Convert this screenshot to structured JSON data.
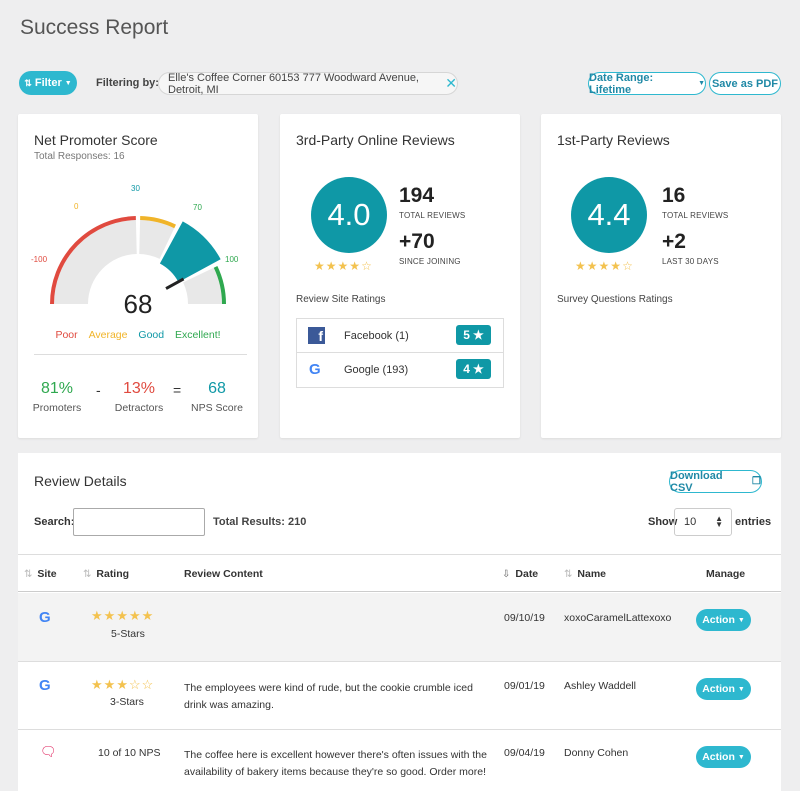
{
  "page_title": "Success Report",
  "filter": {
    "button_label": "Filter",
    "label": "Filtering by:",
    "chip": "Elle's Coffee Corner 60153 777 Woodward Avenue, Detroit, MI"
  },
  "date_range_label": "Date Range: Lifetime",
  "save_pdf_label": "Save as PDF",
  "nps": {
    "title": "Net Promoter Score",
    "total_responses": "Total Responses: 16",
    "score": "68",
    "gauge_ticks": [
      "-100",
      "0",
      "30",
      "70",
      "100"
    ],
    "legend": [
      "Poor",
      "Average",
      "Good",
      "Excellent!"
    ],
    "promoters": {
      "value": "81%",
      "label": "Promoters"
    },
    "minus": "-",
    "detractors": {
      "value": "13%",
      "label": "Detractors"
    },
    "equals": "=",
    "nps_score": {
      "value": "68",
      "label": "NPS Score"
    },
    "colors": {
      "poor": "#e04a3f",
      "average": "#f0b429",
      "good": "#0f98a6",
      "excellent": "#2fa84f"
    }
  },
  "third_party": {
    "title": "3rd-Party Online Reviews",
    "rating": "4.0",
    "stars": 4,
    "total_reviews": "194",
    "total_reviews_label": "TOTAL REVIEWS",
    "change": "+70",
    "change_label": "SINCE JOINING",
    "site_ratings_label": "Review Site Ratings",
    "sites": [
      {
        "name": "Facebook (1)",
        "icon": "facebook-icon",
        "rating": "5"
      },
      {
        "name": "Google (193)",
        "icon": "google-icon",
        "rating": "4"
      }
    ]
  },
  "first_party": {
    "title": "1st-Party Reviews",
    "rating": "4.4",
    "stars": 4,
    "total_reviews": "16",
    "total_reviews_label": "TOTAL REVIEWS",
    "change": "+2",
    "change_label": "LAST 30 DAYS",
    "survey_label": "Survey Questions Ratings"
  },
  "review_details": {
    "title": "Review Details",
    "download_label": "Download CSV",
    "search_label": "Search:",
    "search_value": "",
    "total_results": "Total Results: 210",
    "show_label": "Show",
    "show_value": "10",
    "entries_label": "entries",
    "columns": [
      "Site",
      "Rating",
      "Review Content",
      "Date",
      "Name",
      "Manage"
    ],
    "rows": [
      {
        "site": "google-icon",
        "stars": 5,
        "rating_text": "5-Stars",
        "content": "",
        "date": "09/10/19",
        "name": "xoxoCaramelLattexoxo",
        "action": "Action"
      },
      {
        "site": "google-icon",
        "stars": 3,
        "rating_text": "3-Stars",
        "content": "The employees were kind of rude, but the cookie crumble iced drink was amazing.",
        "date": "09/01/19",
        "name": "Ashley Waddell",
        "action": "Action"
      },
      {
        "site": "survey-icon",
        "stars": 0,
        "rating_text": "10 of 10 NPS",
        "content": "The coffee here is excellent however there's often issues with the availability of bakery items because they're so good. Order more!",
        "date": "09/04/19",
        "name": "Donny Cohen",
        "action": "Action"
      }
    ]
  }
}
